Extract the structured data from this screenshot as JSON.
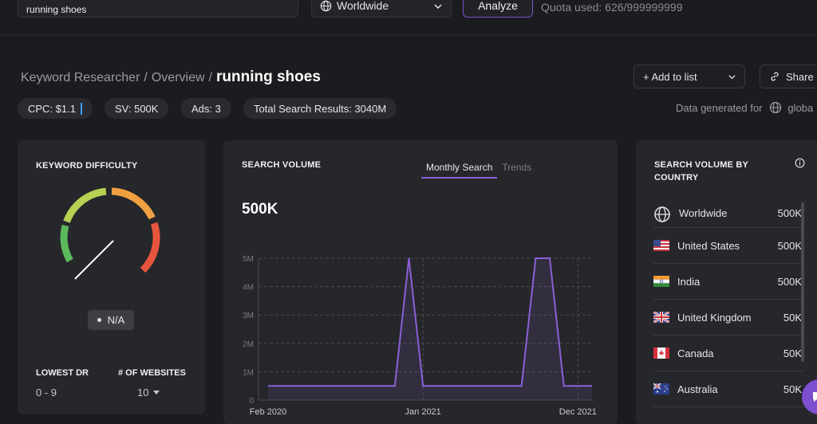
{
  "search": {
    "keyword": "running shoes",
    "location": "Worldwide",
    "analyze_label": "Analyze",
    "quota_text": "Quota used: 626/999999999"
  },
  "breadcrumb": {
    "root": "Keyword Researcher",
    "separator": "/",
    "section": "Overview",
    "current": "running shoes"
  },
  "actions": {
    "add_to_list": "+ Add to list",
    "share": "Share"
  },
  "stats": {
    "cpc": "CPC: $1.1",
    "sv": "SV: 500K",
    "ads": "Ads: 3",
    "total_results": "Total Search Results: 3040M"
  },
  "data_generated": {
    "label": "Data generated for",
    "value": "globa"
  },
  "keyword_difficulty": {
    "title": "KEYWORD DIFFICULTY",
    "value": "N/A",
    "lowest_dr_label": "LOWEST DR",
    "lowest_dr_value": "0 - 9",
    "websites_label": "# OF WEBSITES",
    "websites_value": "10",
    "gauge_colors": [
      "#5cb85c",
      "#b8d152",
      "#f0a040",
      "#e8553e"
    ]
  },
  "search_volume": {
    "title": "SEARCH VOLUME",
    "tab_monthly": "Monthly Search",
    "tab_trends": "Trends",
    "big_value": "500K"
  },
  "chart_data": {
    "type": "area",
    "color": "#8b5fd6",
    "yticks": [
      "0",
      "1M",
      "2M",
      "3M",
      "4M",
      "5M"
    ],
    "ylim": [
      0,
      5000000
    ],
    "xtick_labels": [
      "Feb 2020",
      "Jan 2021",
      "Dec 2021"
    ],
    "x": [
      "2020-02",
      "2020-03",
      "2020-04",
      "2020-05",
      "2020-06",
      "2020-07",
      "2020-08",
      "2020-09",
      "2020-10",
      "2020-11",
      "2020-12",
      "2021-01",
      "2021-02",
      "2021-03",
      "2021-04",
      "2021-05",
      "2021-06",
      "2021-07",
      "2021-08",
      "2021-09",
      "2021-10",
      "2021-11",
      "2021-12",
      "2022-01"
    ],
    "values": [
      500000,
      500000,
      500000,
      500000,
      500000,
      500000,
      500000,
      500000,
      500000,
      500000,
      5000000,
      500000,
      500000,
      500000,
      500000,
      500000,
      500000,
      500000,
      500000,
      5000000,
      5000000,
      500000,
      500000,
      500000
    ]
  },
  "countries": {
    "title_line1": "SEARCH VOLUME BY",
    "title_line2": "COUNTRY",
    "rows": [
      {
        "name": "Worldwide",
        "volume": "500K"
      },
      {
        "name": "United States",
        "volume": "500K"
      },
      {
        "name": "India",
        "volume": "500K"
      },
      {
        "name": "United Kingdom",
        "volume": "50K"
      },
      {
        "name": "Canada",
        "volume": "50K"
      },
      {
        "name": "Australia",
        "volume": "50K"
      }
    ]
  }
}
